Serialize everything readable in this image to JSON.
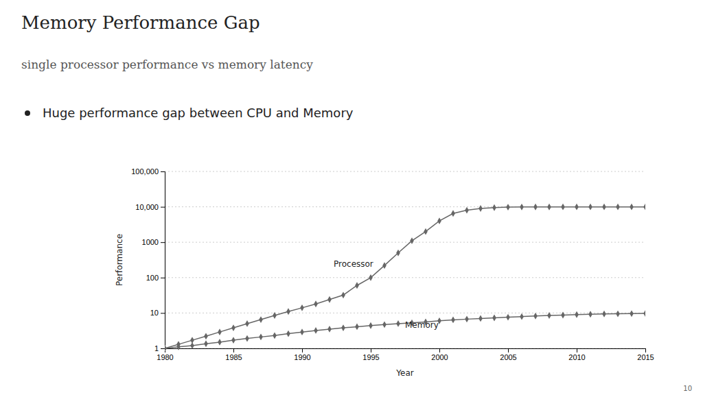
{
  "chart_data": {
    "type": "line",
    "title": "Memory Performance Gap",
    "subtitle": "single processor performance vs memory latency",
    "x_label": "Year",
    "y_label": "Performance",
    "log": "y",
    "grid": "y",
    "x": [
      1980,
      1981,
      1982,
      1983,
      1984,
      1985,
      1986,
      1987,
      1988,
      1989,
      1990,
      1991,
      1992,
      1993,
      1994,
      1995,
      1996,
      1997,
      1998,
      1999,
      2000,
      2001,
      2002,
      2003,
      2004,
      2005,
      2006,
      2007,
      2008,
      2009,
      2010,
      2011,
      2012,
      2013,
      2014,
      2015
    ],
    "series": [
      {
        "color": "#666666",
        "marker": "diamond",
        "values": [
          1,
          1.3,
          1.7,
          2.2,
          2.9,
          3.8,
          5.0,
          6.5,
          8.5,
          11,
          14,
          18,
          24,
          32,
          60,
          100,
          220,
          500,
          1100,
          2000,
          4000,
          6500,
          8000,
          9000,
          9500,
          9800,
          9900,
          9930,
          9950,
          9960,
          9965,
          9968,
          9970,
          9972,
          9974,
          9975
        ]
      },
      {
        "color": "#666666",
        "marker": "diamond",
        "values": [
          1,
          1.1,
          1.2,
          1.35,
          1.5,
          1.7,
          1.9,
          2.1,
          2.3,
          2.6,
          2.9,
          3.2,
          3.5,
          3.8,
          4.1,
          4.4,
          4.7,
          5.0,
          5.3,
          5.6,
          6.0,
          6.4,
          6.7,
          7.0,
          7.3,
          7.6,
          7.9,
          8.2,
          8.5,
          8.7,
          9.0,
          9.2,
          9.4,
          9.5,
          9.6,
          9.7
        ]
      }
    ],
    "xlim": [
      1980,
      2015
    ],
    "xticks": [
      1980,
      1985,
      1990,
      1995,
      2000,
      2005,
      2010,
      2015
    ],
    "ylim": [
      1,
      100000
    ],
    "yticks": [
      1,
      10,
      100,
      1000,
      {
        "value": 10000,
        "label": "10,000"
      },
      {
        "value": 100000,
        "label": "100,000"
      }
    ],
    "annotations": [
      {
        "text": "Processor",
        "x": 1992.3,
        "y": 200
      },
      {
        "text": "Memory",
        "x": 1997.5,
        "y": 3.8
      },
      {
        "text": "Huge performance gap between CPU and Memory"
      },
      {
        "text": "10"
      }
    ]
  }
}
